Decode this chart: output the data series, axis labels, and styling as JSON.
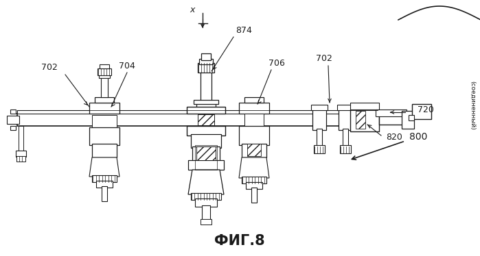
{
  "background_color": "#ffffff",
  "line_color": "#1a1a1a",
  "fig_label": "ФИГ.8",
  "labels": {
    "702_left": "702",
    "704": "704",
    "874": "874",
    "706": "706",
    "702_right": "702",
    "720": "720",
    "820": "820",
    "800": "800",
    "x_label": "x",
    "soedinennyj": "(соединенный)"
  }
}
